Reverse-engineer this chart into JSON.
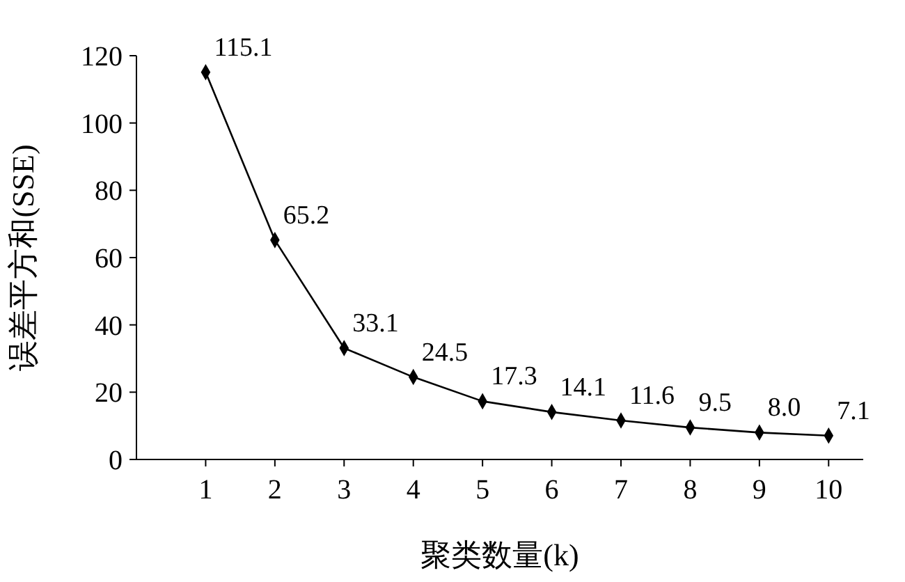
{
  "chart_data": {
    "type": "line",
    "xlabel": "聚类数量(k)",
    "ylabel": "误差平方和(SSE)",
    "x": [
      1,
      2,
      3,
      4,
      5,
      6,
      7,
      8,
      9,
      10
    ],
    "series": [
      {
        "color": "#000000",
        "values": [
          115.1,
          65.2,
          33.1,
          24.5,
          17.3,
          14.1,
          11.6,
          9.5,
          8.0,
          7.1
        ],
        "value_labels": [
          "115.1",
          "65.2",
          "33.1",
          "24.5",
          "17.3",
          "14.1",
          "11.6",
          "9.5",
          "8.0",
          "7.1"
        ]
      }
    ],
    "xlim": [
      0,
      10.5
    ],
    "xticks": [
      1,
      2,
      3,
      4,
      5,
      6,
      7,
      8,
      9,
      10
    ],
    "ylim": [
      0,
      120
    ],
    "yticks": [
      0,
      20,
      40,
      60,
      80,
      100,
      120
    ],
    "marker": "diamond",
    "line_style": "solid"
  }
}
